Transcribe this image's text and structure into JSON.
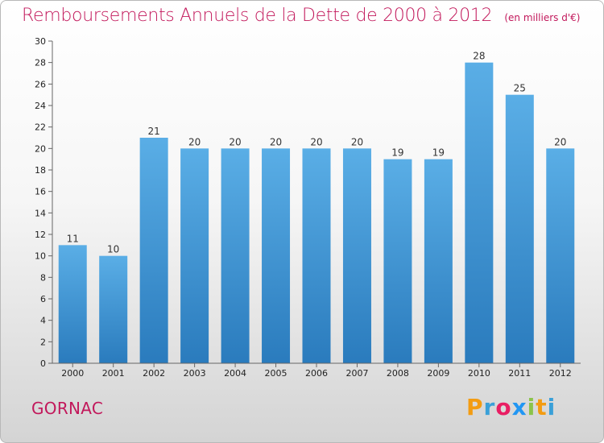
{
  "title": "Remboursements Annuels de la Dette de 2000 à 2012",
  "subtitle": "(en milliers d'€)",
  "place_name": "GORNAC",
  "brand": {
    "letters": [
      "P",
      "r",
      "o",
      "x",
      "i",
      "t",
      "i"
    ],
    "colors": [
      "#f39c12",
      "#3aa0d8",
      "#e91e63",
      "#2196f3",
      "#8bc34a",
      "#f39c12",
      "#3aa0d8"
    ]
  },
  "colors": {
    "bar_light": "#5aaee6",
    "bar_dark": "#2a7bbd",
    "title": "#c2185b"
  },
  "chart_data": {
    "type": "bar",
    "categories": [
      "2000",
      "2001",
      "2002",
      "2003",
      "2004",
      "2005",
      "2006",
      "2007",
      "2008",
      "2009",
      "2010",
      "2011",
      "2012"
    ],
    "values": [
      11,
      10,
      21,
      20,
      20,
      20,
      20,
      20,
      19,
      19,
      28,
      25,
      20
    ],
    "title": "Remboursements Annuels de la Dette de 2000 à 2012",
    "xlabel": "",
    "ylabel": "",
    "ylim": [
      0,
      30
    ],
    "yticks": [
      0,
      2,
      4,
      6,
      8,
      10,
      12,
      14,
      16,
      18,
      20,
      22,
      24,
      26,
      28,
      30
    ],
    "grid": false,
    "data_labels": true
  }
}
